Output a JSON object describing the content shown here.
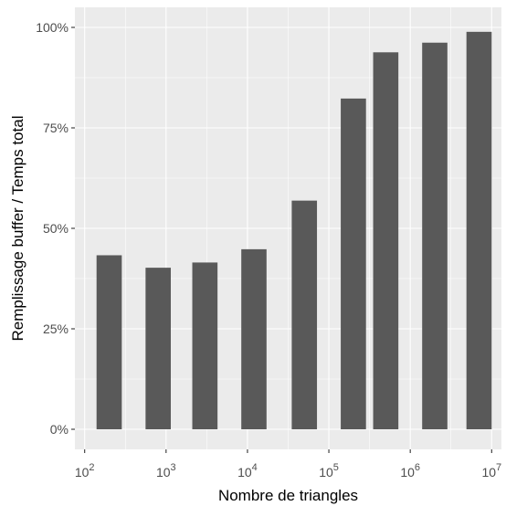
{
  "chart_data": {
    "type": "bar",
    "xlabel": "Nombre de triangles",
    "ylabel": "Remplissage buffer / Temps total",
    "x_scale": "log10",
    "xlim": [
      100,
      10000000
    ],
    "ylim": [
      0,
      100
    ],
    "y_unit": "%",
    "grid": true,
    "x_ticks": [
      {
        "base": "10",
        "exp": "2",
        "value": 100
      },
      {
        "base": "10",
        "exp": "3",
        "value": 1000
      },
      {
        "base": "10",
        "exp": "4",
        "value": 10000
      },
      {
        "base": "10",
        "exp": "5",
        "value": 100000
      },
      {
        "base": "10",
        "exp": "6",
        "value": 1000000
      },
      {
        "base": "10",
        "exp": "7",
        "value": 10000000
      }
    ],
    "y_ticks": [
      "0%",
      "25%",
      "50%",
      "75%",
      "100%"
    ],
    "y_tick_values": [
      0,
      25,
      50,
      75,
      100
    ],
    "bars": [
      {
        "x": 200,
        "y": 43.3
      },
      {
        "x": 800,
        "y": 40.2
      },
      {
        "x": 3000,
        "y": 41.5
      },
      {
        "x": 12000,
        "y": 44.8
      },
      {
        "x": 50000,
        "y": 56.9
      },
      {
        "x": 200000,
        "y": 82.3
      },
      {
        "x": 500000,
        "y": 93.8
      },
      {
        "x": 2000000,
        "y": 96.2
      },
      {
        "x": 7000000,
        "y": 98.9
      }
    ],
    "colors": {
      "bar": "#595959",
      "panel": "#ebebeb",
      "grid_major": "#ffffff",
      "tick_text": "#4d4d4d"
    }
  }
}
